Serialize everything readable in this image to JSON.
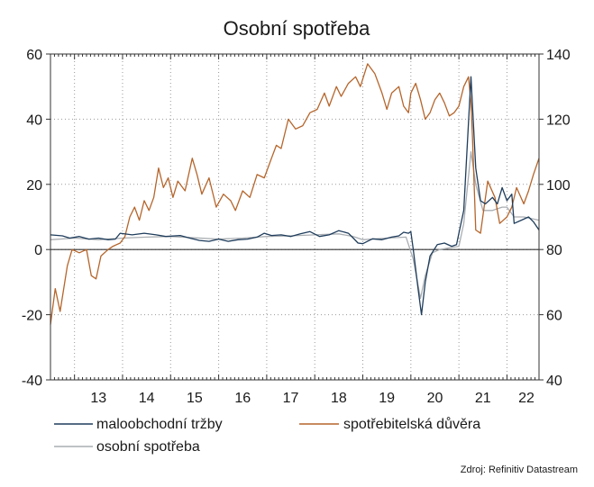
{
  "chart_data": {
    "type": "line",
    "title": "Osobní spotřeba",
    "source": "Zdroj: Refinitiv Datastream",
    "x_unit": "year (2-digit)",
    "xlim": [
      2012.5,
      2022.667
    ],
    "x_tick_labels": [
      "13",
      "14",
      "15",
      "16",
      "17",
      "18",
      "19",
      "20",
      "21",
      "22"
    ],
    "y_left": {
      "ylim": [
        -40,
        60
      ],
      "ticks": [
        -40,
        -20,
        0,
        20,
        40,
        60
      ]
    },
    "y_right": {
      "ylim": [
        40,
        140
      ],
      "ticks": [
        40,
        60,
        80,
        100,
        120,
        140
      ]
    },
    "grid": true,
    "legend": [
      {
        "label": "maloobchodní tržby",
        "color": "#1f3d5c"
      },
      {
        "label": "spotřebitelská důvěra",
        "color": "#b5652b"
      },
      {
        "label": "osobní spotřeba",
        "color": "#a9adb1"
      }
    ],
    "series": [
      {
        "name": "maloobchodní tržby",
        "axis": "left",
        "color": "#1f3d5c",
        "points": [
          [
            2012.5,
            4.5
          ],
          [
            2012.75,
            4.2
          ],
          [
            2012.9,
            3.5
          ],
          [
            2013.1,
            4.0
          ],
          [
            2013.3,
            3.2
          ],
          [
            2013.5,
            3.5
          ],
          [
            2013.7,
            3.0
          ],
          [
            2013.85,
            3.2
          ],
          [
            2013.95,
            5.0
          ],
          [
            2014.2,
            4.5
          ],
          [
            2014.45,
            5.0
          ],
          [
            2014.7,
            4.5
          ],
          [
            2014.9,
            4.0
          ],
          [
            2015.2,
            4.3
          ],
          [
            2015.4,
            3.5
          ],
          [
            2015.6,
            2.8
          ],
          [
            2015.8,
            2.5
          ],
          [
            2016.0,
            3.2
          ],
          [
            2016.2,
            2.5
          ],
          [
            2016.4,
            3.0
          ],
          [
            2016.6,
            3.2
          ],
          [
            2016.8,
            3.8
          ],
          [
            2016.95,
            5.0
          ],
          [
            2017.1,
            4.3
          ],
          [
            2017.3,
            4.5
          ],
          [
            2017.5,
            4.0
          ],
          [
            2017.7,
            4.8
          ],
          [
            2017.9,
            5.5
          ],
          [
            2018.1,
            4.0
          ],
          [
            2018.3,
            4.5
          ],
          [
            2018.5,
            5.8
          ],
          [
            2018.7,
            5.0
          ],
          [
            2018.8,
            3.5
          ],
          [
            2018.9,
            2.0
          ],
          [
            2019.0,
            1.8
          ],
          [
            2019.2,
            3.3
          ],
          [
            2019.4,
            3.0
          ],
          [
            2019.6,
            3.8
          ],
          [
            2019.75,
            4.2
          ],
          [
            2019.85,
            5.3
          ],
          [
            2019.95,
            5.0
          ],
          [
            2020.0,
            5.5
          ],
          [
            2020.05,
            0.0
          ],
          [
            2020.15,
            -12
          ],
          [
            2020.22,
            -20
          ],
          [
            2020.3,
            -10
          ],
          [
            2020.4,
            -2
          ],
          [
            2020.55,
            1.5
          ],
          [
            2020.7,
            2.0
          ],
          [
            2020.85,
            1.0
          ],
          [
            2020.95,
            1.5
          ],
          [
            2021.0,
            5.0
          ],
          [
            2021.1,
            12
          ],
          [
            2021.25,
            53
          ],
          [
            2021.35,
            25
          ],
          [
            2021.45,
            15
          ],
          [
            2021.55,
            14
          ],
          [
            2021.7,
            16
          ],
          [
            2021.8,
            14
          ],
          [
            2021.9,
            19
          ],
          [
            2022.0,
            15
          ],
          [
            2022.1,
            17
          ],
          [
            2022.15,
            8
          ],
          [
            2022.3,
            9
          ],
          [
            2022.45,
            10
          ],
          [
            2022.55,
            8.5
          ],
          [
            2022.667,
            6
          ]
        ]
      },
      {
        "name": "spotřebitelská důvěra",
        "axis": "right",
        "color": "#b5652b",
        "points": [
          [
            2012.5,
            57
          ],
          [
            2012.6,
            68
          ],
          [
            2012.7,
            61
          ],
          [
            2012.85,
            75
          ],
          [
            2012.95,
            80
          ],
          [
            2013.1,
            79
          ],
          [
            2013.25,
            80
          ],
          [
            2013.35,
            72
          ],
          [
            2013.45,
            71
          ],
          [
            2013.55,
            78
          ],
          [
            2013.7,
            80
          ],
          [
            2013.8,
            81
          ],
          [
            2013.95,
            82
          ],
          [
            2014.05,
            84
          ],
          [
            2014.15,
            90
          ],
          [
            2014.25,
            93
          ],
          [
            2014.35,
            89
          ],
          [
            2014.45,
            95
          ],
          [
            2014.55,
            92
          ],
          [
            2014.65,
            96
          ],
          [
            2014.75,
            105
          ],
          [
            2014.85,
            99
          ],
          [
            2014.95,
            102
          ],
          [
            2015.05,
            96
          ],
          [
            2015.15,
            101
          ],
          [
            2015.3,
            98
          ],
          [
            2015.45,
            108
          ],
          [
            2015.55,
            103
          ],
          [
            2015.65,
            97
          ],
          [
            2015.8,
            102
          ],
          [
            2015.95,
            93
          ],
          [
            2016.1,
            97
          ],
          [
            2016.25,
            95
          ],
          [
            2016.35,
            92
          ],
          [
            2016.5,
            98
          ],
          [
            2016.65,
            96
          ],
          [
            2016.8,
            103
          ],
          [
            2016.95,
            102
          ],
          [
            2017.1,
            108
          ],
          [
            2017.2,
            112
          ],
          [
            2017.3,
            111
          ],
          [
            2017.45,
            120
          ],
          [
            2017.6,
            117
          ],
          [
            2017.75,
            118
          ],
          [
            2017.9,
            122
          ],
          [
            2018.05,
            123
          ],
          [
            2018.2,
            128
          ],
          [
            2018.3,
            124
          ],
          [
            2018.45,
            130
          ],
          [
            2018.55,
            127
          ],
          [
            2018.7,
            131
          ],
          [
            2018.85,
            133
          ],
          [
            2018.95,
            130
          ],
          [
            2019.1,
            137
          ],
          [
            2019.25,
            134
          ],
          [
            2019.4,
            128
          ],
          [
            2019.5,
            123
          ],
          [
            2019.6,
            128
          ],
          [
            2019.75,
            130
          ],
          [
            2019.85,
            124
          ],
          [
            2019.95,
            122
          ],
          [
            2020.0,
            128
          ],
          [
            2020.1,
            131
          ],
          [
            2020.2,
            126
          ],
          [
            2020.3,
            120
          ],
          [
            2020.4,
            122
          ],
          [
            2020.5,
            126
          ],
          [
            2020.6,
            128
          ],
          [
            2020.7,
            125
          ],
          [
            2020.8,
            121
          ],
          [
            2020.9,
            122
          ],
          [
            2021.0,
            124
          ],
          [
            2021.1,
            130
          ],
          [
            2021.2,
            133
          ],
          [
            2021.25,
            125
          ],
          [
            2021.28,
            115
          ],
          [
            2021.35,
            86
          ],
          [
            2021.45,
            85
          ],
          [
            2021.6,
            101
          ],
          [
            2021.75,
            96
          ],
          [
            2021.85,
            88
          ],
          [
            2022.0,
            90
          ],
          [
            2022.1,
            93
          ],
          [
            2022.2,
            99
          ],
          [
            2022.35,
            94
          ],
          [
            2022.45,
            98
          ],
          [
            2022.55,
            103
          ],
          [
            2022.667,
            108
          ]
        ]
      },
      {
        "name": "osobní spotřeba",
        "axis": "left",
        "color": "#a9adb1",
        "points": [
          [
            2012.5,
            3.0
          ],
          [
            2013.0,
            3.5
          ],
          [
            2013.5,
            3.0
          ],
          [
            2014.0,
            3.5
          ],
          [
            2014.5,
            3.8
          ],
          [
            2015.0,
            4.0
          ],
          [
            2015.5,
            3.6
          ],
          [
            2016.0,
            3.2
          ],
          [
            2016.5,
            3.5
          ],
          [
            2017.0,
            4.0
          ],
          [
            2017.5,
            4.2
          ],
          [
            2018.0,
            4.5
          ],
          [
            2018.5,
            4.8
          ],
          [
            2018.8,
            4.0
          ],
          [
            2019.0,
            3.0
          ],
          [
            2019.5,
            3.5
          ],
          [
            2019.9,
            3.8
          ],
          [
            2020.05,
            -3
          ],
          [
            2020.2,
            -15
          ],
          [
            2020.3,
            -8
          ],
          [
            2020.45,
            -1
          ],
          [
            2020.6,
            0
          ],
          [
            2020.8,
            0.5
          ],
          [
            2021.0,
            1.0
          ],
          [
            2021.1,
            8
          ],
          [
            2021.25,
            30
          ],
          [
            2021.35,
            20
          ],
          [
            2021.5,
            12
          ],
          [
            2021.7,
            12
          ],
          [
            2021.9,
            13
          ],
          [
            2022.0,
            13
          ],
          [
            2022.15,
            10
          ],
          [
            2022.35,
            10
          ],
          [
            2022.667,
            9
          ]
        ]
      }
    ]
  }
}
